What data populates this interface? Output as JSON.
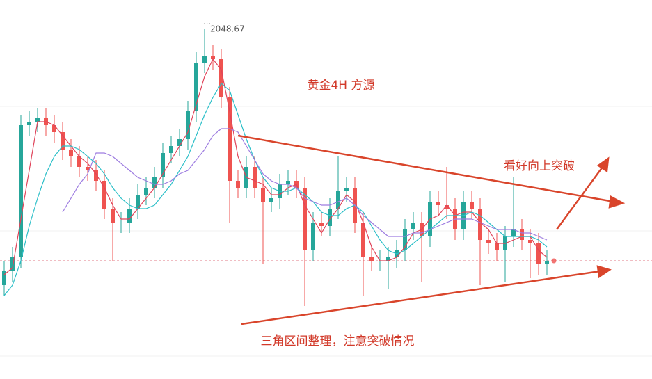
{
  "chart_data": {
    "type": "candlestick",
    "title": "黄金4H  方源",
    "annotations": [
      "看好向上突破",
      "三角区间整理，注意突破情况"
    ],
    "ylim": [
      1948,
      2057
    ],
    "up_color": "#26a69a",
    "down_color": "#ef5350",
    "last_price": 1982,
    "open": [
      1975,
      1979,
      1983,
      2021,
      2022,
      2023,
      2021,
      2019,
      2014,
      2012,
      2009,
      2008,
      2005,
      1997,
      1993,
      1993,
      1997,
      2001,
      2003,
      2006,
      2013,
      2015,
      2017,
      2025,
      2039,
      2041,
      2040,
      2029,
      2005,
      2003,
      2009,
      2003,
      1999,
      2000,
      2004,
      2005,
      2003,
      1985,
      1993,
      1992,
      1997,
      2002,
      2003,
      1993,
      1983,
      1982,
      1982,
      1983,
      1985,
      1991,
      1993,
      1989,
      1999,
      1998,
      1997,
      1991,
      1999,
      1997,
      1988,
      1987,
      1985,
      1989,
      1991,
      1988,
      1987,
      1981
    ],
    "high": [
      1982,
      1986,
      2024,
      2025,
      2026,
      2026,
      2024,
      2022,
      2017,
      2015,
      2012,
      2011,
      2008,
      2000,
      1996,
      2000,
      2004,
      2006,
      2009,
      2016,
      2018,
      2020,
      2028,
      2042,
      2048.67,
      2044,
      2043,
      2032,
      2008,
      2012,
      2012,
      2006,
      2003,
      2007,
      2008,
      2008,
      2006,
      1996,
      1996,
      2000,
      2012,
      2006,
      2006,
      1996,
      1986,
      1985,
      1986,
      1988,
      1994,
      1996,
      1996,
      2002,
      2002,
      2009,
      2000,
      2002,
      2002,
      2000,
      1991,
      1990,
      1992,
      2006,
      1994,
      1991,
      1990,
      1985
    ],
    "low": [
      1972,
      1976,
      1980,
      2018,
      2019,
      2018,
      2016,
      2011,
      2009,
      2006,
      2005,
      2002,
      1994,
      1982,
      1990,
      1990,
      1994,
      1998,
      2000,
      2003,
      2010,
      2012,
      2014,
      2022,
      2036,
      2037,
      2026,
      1993,
      2000,
      2000,
      2000,
      1981,
      1996,
      1997,
      2001,
      2000,
      1969,
      1982,
      1989,
      1989,
      1994,
      1999,
      1990,
      1972,
      1979,
      1979,
      1974,
      1980,
      1982,
      1988,
      1976,
      1986,
      1995,
      1994,
      1988,
      1988,
      1994,
      1975,
      1984,
      1982,
      1976,
      1986,
      1985,
      1977,
      1978,
      1978
    ],
    "close": [
      1979,
      1983,
      2021,
      2022,
      2023,
      2021,
      2019,
      2014,
      2012,
      2009,
      2008,
      2005,
      1997,
      1993,
      1993,
      1997,
      2001,
      2003,
      2006,
      2013,
      2015,
      2017,
      2025,
      2039,
      2041,
      2040,
      2029,
      2005,
      2003,
      2009,
      2003,
      1999,
      2000,
      2004,
      2005,
      2003,
      1985,
      1993,
      1992,
      1997,
      2002,
      2003,
      1993,
      1983,
      1982,
      1982,
      1983,
      1985,
      1991,
      1993,
      1989,
      1999,
      1998,
      1997,
      1991,
      1999,
      1997,
      1988,
      1987,
      1985,
      1989,
      1991,
      1988,
      1987,
      1981,
      1982
    ],
    "moving_averages": [
      {
        "color": "#e0445a",
        "values": [
          1978,
          1980,
          1994,
          2008,
          2022,
          2022,
          2021,
          2018,
          2015,
          2012,
          2010,
          2007,
          2003,
          1998,
          1994,
          1994,
          1997,
          2000,
          2003,
          2007,
          2011,
          2015,
          2019,
          2027,
          2035,
          2040,
          2037,
          2025,
          2012,
          2006,
          2005,
          2004,
          2001,
          2001,
          2003,
          2004,
          1998,
          1994,
          1990,
          1994,
          1997,
          2001,
          1999,
          1993,
          1986,
          1982,
          1982,
          1983,
          1986,
          1990,
          1991,
          1994,
          1995,
          1998,
          1995,
          1996,
          1996,
          1993,
          1991,
          1987,
          1987,
          1988,
          1989,
          1989,
          1985,
          1983
        ]
      },
      {
        "color": "#2bbfc8",
        "values": [
          1972,
          1975,
          1982,
          1992,
          2000,
          2007,
          2012,
          2015,
          2015,
          2014,
          2012,
          2010,
          2007,
          2003,
          2000,
          1998,
          1997,
          1997,
          1998,
          2001,
          2004,
          2008,
          2012,
          2018,
          2024,
          2029,
          2033,
          2031,
          2024,
          2017,
          2011,
          2006,
          2003,
          2002,
          2002,
          2003,
          2001,
          1999,
          1996,
          1995,
          1995,
          1997,
          1998,
          1996,
          1992,
          1988,
          1985,
          1984,
          1985,
          1987,
          1989,
          1991,
          1993,
          1995,
          1995,
          1995,
          1996,
          1995,
          1993,
          1991,
          1989,
          1989,
          1989,
          1989,
          1988,
          1986
        ]
      },
      {
        "color": "#9d7ce0",
        "values": [
          null,
          null,
          null,
          null,
          null,
          null,
          null,
          1996,
          2000,
          2004,
          2007,
          2013,
          2013,
          2012,
          2010,
          2008,
          2006,
          2005,
          2004,
          2004,
          2005,
          2007,
          2008,
          2011,
          2014,
          2018,
          2020,
          2020,
          2019,
          2015,
          2011,
          2007,
          2005,
          2004,
          2004,
          2003,
          2000,
          1999,
          1998,
          1998,
          1999,
          2000,
          1998,
          1995,
          1993,
          1991,
          1989,
          1989,
          1989,
          1990,
          1990,
          1991,
          1992,
          1993,
          1994,
          1994,
          1994,
          1993,
          1992,
          1991,
          1991,
          1991,
          1990,
          1990,
          1989,
          1988
        ]
      }
    ]
  }
}
